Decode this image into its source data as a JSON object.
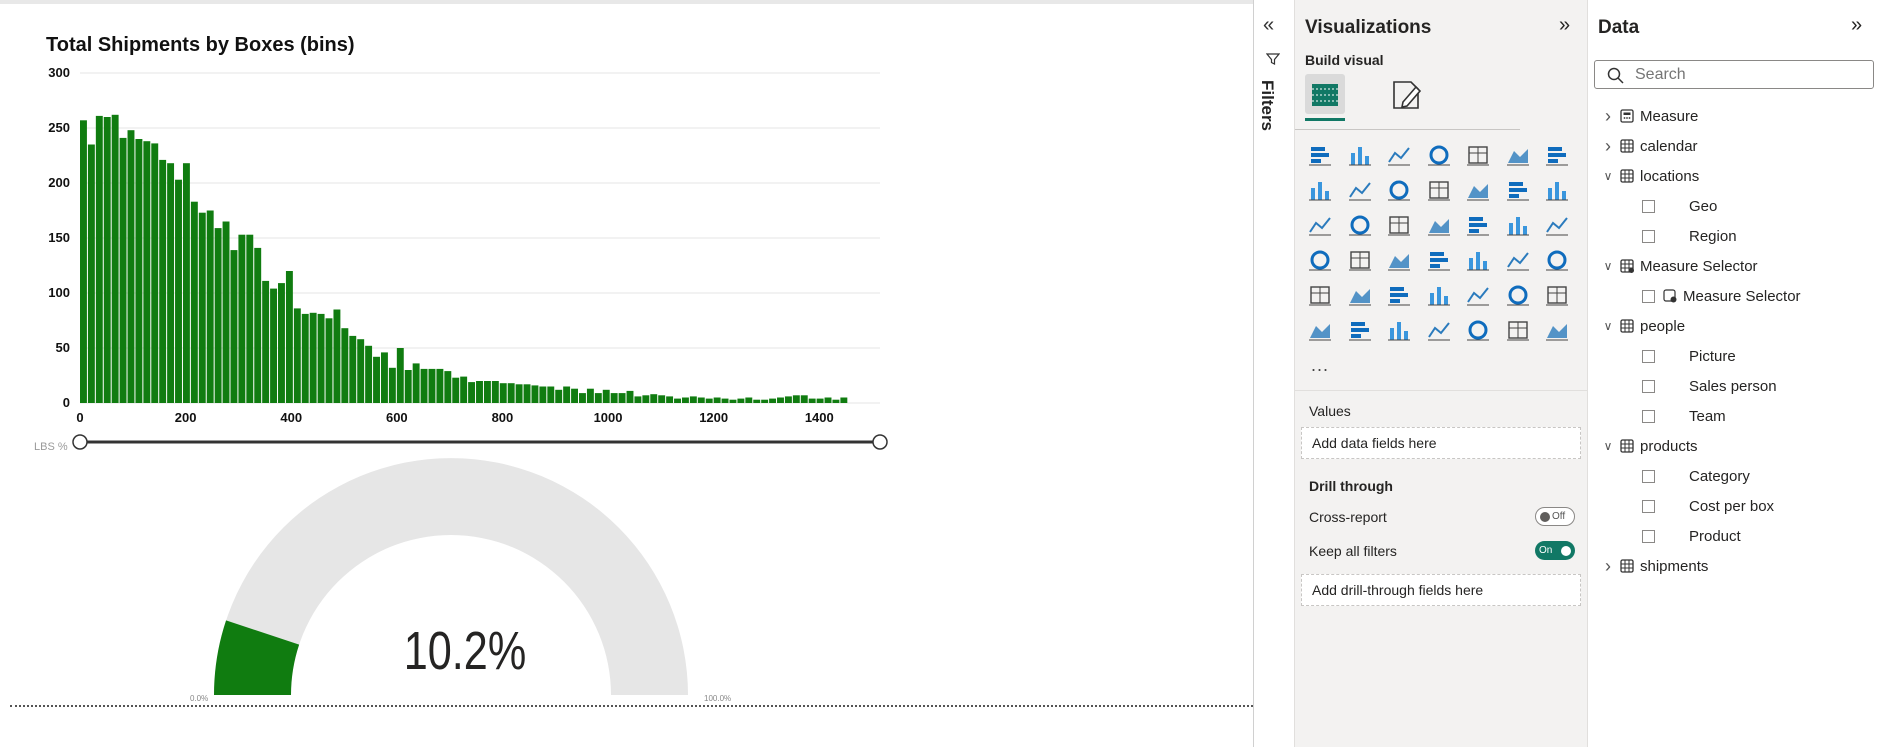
{
  "chart_data": [
    {
      "type": "bar",
      "title": "Total Shipments by Boxes (bins)",
      "bin_width": 15,
      "values": [
        257,
        235,
        261,
        260,
        262,
        241,
        248,
        240,
        238,
        236,
        221,
        218,
        203,
        218,
        183,
        173,
        175,
        159,
        165,
        139,
        153,
        153,
        141,
        111,
        104,
        109,
        120,
        86,
        81,
        82,
        81,
        77,
        85,
        68,
        61,
        58,
        52,
        42,
        46,
        32,
        50,
        30,
        36,
        31,
        31,
        31,
        29,
        23,
        24,
        19,
        20,
        20,
        20,
        18,
        18,
        17,
        17,
        16,
        15,
        15,
        12,
        15,
        13,
        9,
        13,
        9,
        12,
        9,
        9,
        11,
        6,
        7,
        8,
        7,
        6,
        4,
        5,
        6,
        5,
        4,
        5,
        4,
        3,
        4,
        5,
        3,
        3,
        4,
        5,
        6,
        7,
        7,
        4,
        4,
        5,
        3,
        5
      ],
      "xlim": [
        0,
        1515
      ],
      "ylim": [
        0,
        300
      ],
      "x_ticks": [
        "0",
        "200",
        "400",
        "600",
        "800",
        "1000",
        "1200",
        "1400"
      ],
      "y_ticks": [
        "300",
        "250",
        "200",
        "150",
        "100",
        "50",
        "0"
      ],
      "color": "#107c10",
      "grid": true,
      "legend": "none"
    },
    {
      "type": "gauge",
      "value": 10.2,
      "min": 0,
      "max": 100,
      "value_label": "10.2%",
      "min_label": "0.0%",
      "max_label": "100.0%",
      "fill_color": "#107c10",
      "track_color": "#e6e6e6"
    }
  ],
  "slider": {
    "caption": "LBS %"
  },
  "filters": {
    "label": "Filters"
  },
  "visualizations": {
    "title": "Visualizations",
    "build_visual": "Build visual",
    "icons": [
      "stacked-bar-chart-icon",
      "stacked-column-chart-icon",
      "clustered-bar-chart-icon",
      "clustered-column-chart-icon",
      "100-stacked-bar-chart-icon",
      "100-stacked-column-chart-icon",
      "line-chart-icon",
      "area-chart-icon",
      "stacked-area-chart-icon",
      "100-stacked-area-chart-icon",
      "line-and-stacked-column-chart-icon",
      "line-and-clustered-column-chart-icon",
      "ribbon-chart-icon",
      "waterfall-chart-icon",
      "funnel-chart-icon",
      "scatter-chart-icon",
      "pie-chart-icon",
      "donut-chart-icon",
      "treemap-icon",
      "map-icon",
      "filled-map-icon",
      "azure-map-icon",
      "gauge-icon",
      "card-icon",
      "multi-row-card-icon",
      "kpi-icon",
      "slicer-icon",
      "table-icon",
      "matrix-icon",
      "r-script-visual-icon",
      "python-visual-icon",
      "key-influencers-icon",
      "decomposition-tree-icon",
      "qa-icon",
      "narrative-icon",
      "goals-icon",
      "paginated-report-icon",
      "power-apps-icon",
      "power-automate-icon",
      "arcgis-map-icon",
      "power-apps-diamond-icon",
      "get-more-visuals-icon"
    ],
    "more": "...",
    "values_label": "Values",
    "values_placeholder": "Add data fields here",
    "drill_through": "Drill through",
    "cross_report": {
      "label": "Cross-report",
      "state": "Off"
    },
    "keep_all_filters": {
      "label": "Keep all filters",
      "state": "On"
    },
    "drill_placeholder": "Add drill-through fields here"
  },
  "data": {
    "title": "Data",
    "search_placeholder": "Search",
    "tree": [
      {
        "label": "Measure",
        "kind": "measure-table",
        "expanded": false,
        "children": []
      },
      {
        "label": "calendar",
        "kind": "table",
        "expanded": false,
        "children": []
      },
      {
        "label": "locations",
        "kind": "table",
        "expanded": true,
        "children": [
          "Geo",
          "Region"
        ]
      },
      {
        "label": "Measure Selector",
        "kind": "param-table",
        "expanded": true,
        "children": [
          "Measure Selector"
        ]
      },
      {
        "label": "people",
        "kind": "table",
        "expanded": true,
        "children": [
          "Picture",
          "Sales person",
          "Team"
        ]
      },
      {
        "label": "products",
        "kind": "table",
        "expanded": true,
        "children": [
          "Category",
          "Cost per box",
          "Product"
        ]
      },
      {
        "label": "shipments",
        "kind": "table",
        "expanded": false,
        "children": []
      }
    ]
  },
  "colors": {
    "accent": "#117865",
    "bar": "#107c10"
  }
}
